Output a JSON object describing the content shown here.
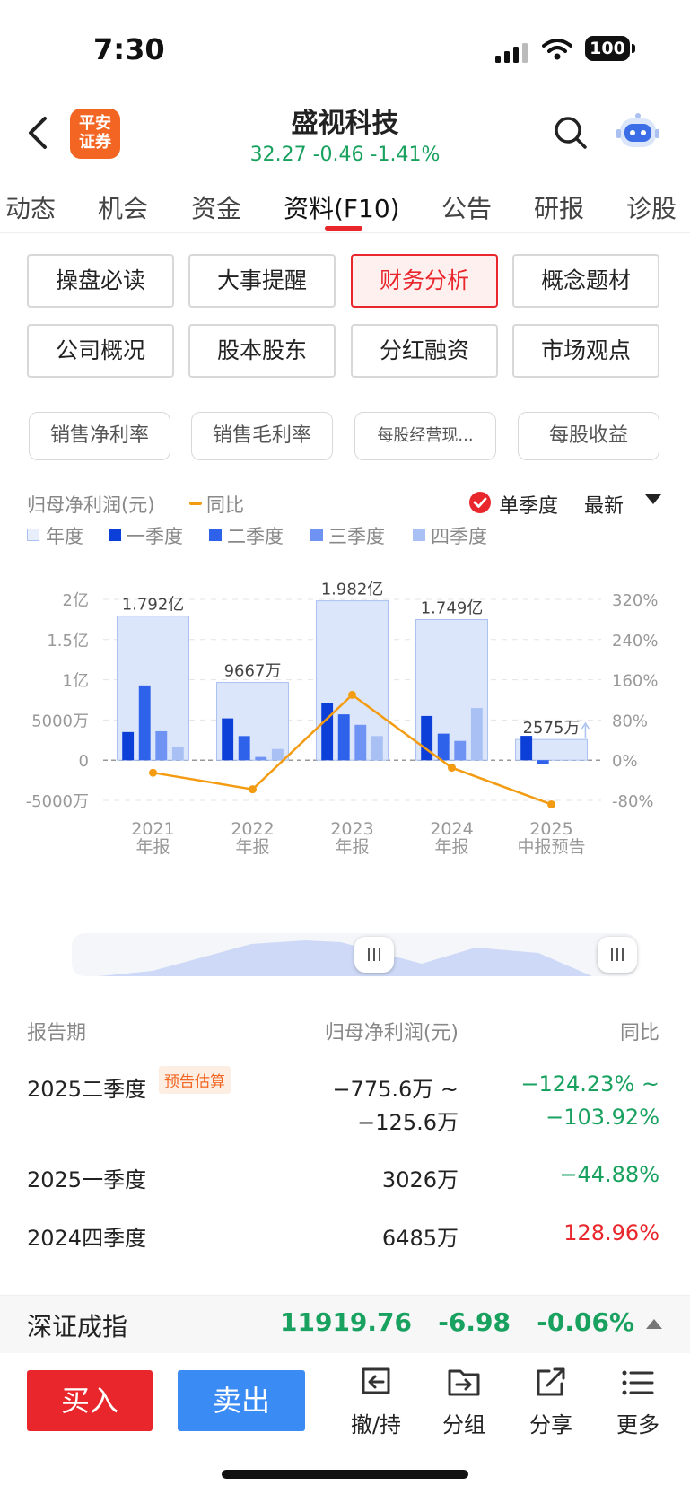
{
  "status_bar": {
    "time": "7:30",
    "battery": "100"
  },
  "header": {
    "logo_text": "平安证券",
    "logo_line1": "平安",
    "logo_line2": "证券",
    "stock_name": "盛视科技",
    "quote": "32.27 -0.46 -1.41%",
    "quote_color": "#19a15f"
  },
  "tabs": [
    "动态",
    "机会",
    "资金",
    "资料(F10)",
    "公告",
    "研报",
    "诊股"
  ],
  "active_tab": "资料(F10)",
  "section_buttons": [
    "操盘必读",
    "大事提醒",
    "财务分析",
    "概念题材",
    "公司概况",
    "股本股东",
    "分红融资",
    "市场观点"
  ],
  "active_section": "财务分析",
  "metric_chips": [
    "销售净利率",
    "销售毛利率",
    "每股经营现...",
    "每股收益"
  ],
  "legend": {
    "metric_label": "归母净利润(元)",
    "yoy_label": "同比",
    "single_quarter": "单季度",
    "latest": "最新",
    "series": [
      "年度",
      "一季度",
      "二季度",
      "三季度",
      "四季度"
    ]
  },
  "chart_data": {
    "type": "bar",
    "categories": [
      "2021\n年报",
      "2022\n年报",
      "2023\n年报",
      "2024\n年报",
      "2025\n中报预告"
    ],
    "category_lines": [
      [
        "2021",
        "年报"
      ],
      [
        "2022",
        "年报"
      ],
      [
        "2023",
        "年报"
      ],
      [
        "2024",
        "年报"
      ],
      [
        "2025",
        "中报预告"
      ]
    ],
    "y_left_ticks": [
      "2亿",
      "1.5亿",
      "1亿",
      "5000万",
      "0",
      "-5000万"
    ],
    "y_right_ticks": [
      "320%",
      "240%",
      "160%",
      "80%",
      "0%",
      "-80%"
    ],
    "ylim_wan": [
      -5000,
      20000
    ],
    "y2lim_percent": [
      -80,
      320
    ],
    "annual_labels": [
      "1.792亿",
      "9667万",
      "1.982亿",
      "1.749亿",
      "2575万"
    ],
    "series": [
      {
        "name": "年度",
        "unit": "万",
        "values": [
          17920,
          9667,
          19820,
          17490,
          2575
        ]
      },
      {
        "name": "一季度",
        "unit": "万",
        "values": [
          3500,
          5200,
          7100,
          5500,
          3026
        ]
      },
      {
        "name": "二季度",
        "unit": "万",
        "values": [
          9300,
          3000,
          5700,
          3300,
          -450
        ]
      },
      {
        "name": "三季度",
        "unit": "万",
        "values": [
          3600,
          400,
          4400,
          2400,
          null
        ]
      },
      {
        "name": "四季度",
        "unit": "万",
        "values": [
          1700,
          1400,
          3000,
          6485,
          null
        ]
      },
      {
        "name": "同比",
        "unit": "%",
        "values": [
          -25,
          -58,
          130,
          -15,
          -88
        ]
      }
    ],
    "colors": {
      "annual": "#dce6fb",
      "annual_border": "#a9c0f0",
      "q1": "#0c3fd8",
      "q2": "#2f62ea",
      "q3": "#6f93f2",
      "q4": "#a9c0f5",
      "yoy": "#f39c12"
    },
    "grid": true
  },
  "table": {
    "headers": [
      "报告期",
      "归母净利润(元)",
      "同比"
    ],
    "rows": [
      {
        "period": "2025二季度",
        "badge": "预告估算",
        "value_line1": "−775.6万 ~",
        "value_line2": "−125.6万",
        "yoy_line1": "−124.23% ~",
        "yoy_line2": "−103.92%",
        "yoy_color": "green"
      },
      {
        "period": "2025一季度",
        "value_line1": "3026万",
        "yoy_line1": "−44.88%",
        "yoy_color": "green"
      },
      {
        "period": "2024四季度",
        "value_line1": "6485万",
        "yoy_line1": "128.96%",
        "yoy_color": "red"
      }
    ]
  },
  "index_bar": {
    "name": "深证成指",
    "value": "11919.76",
    "change": "-6.98",
    "percent": "-0.06%"
  },
  "toolbar": {
    "buy": "买入",
    "sell": "卖出",
    "withdraw": "撤/持",
    "group": "分组",
    "share": "分享",
    "more": "更多"
  }
}
